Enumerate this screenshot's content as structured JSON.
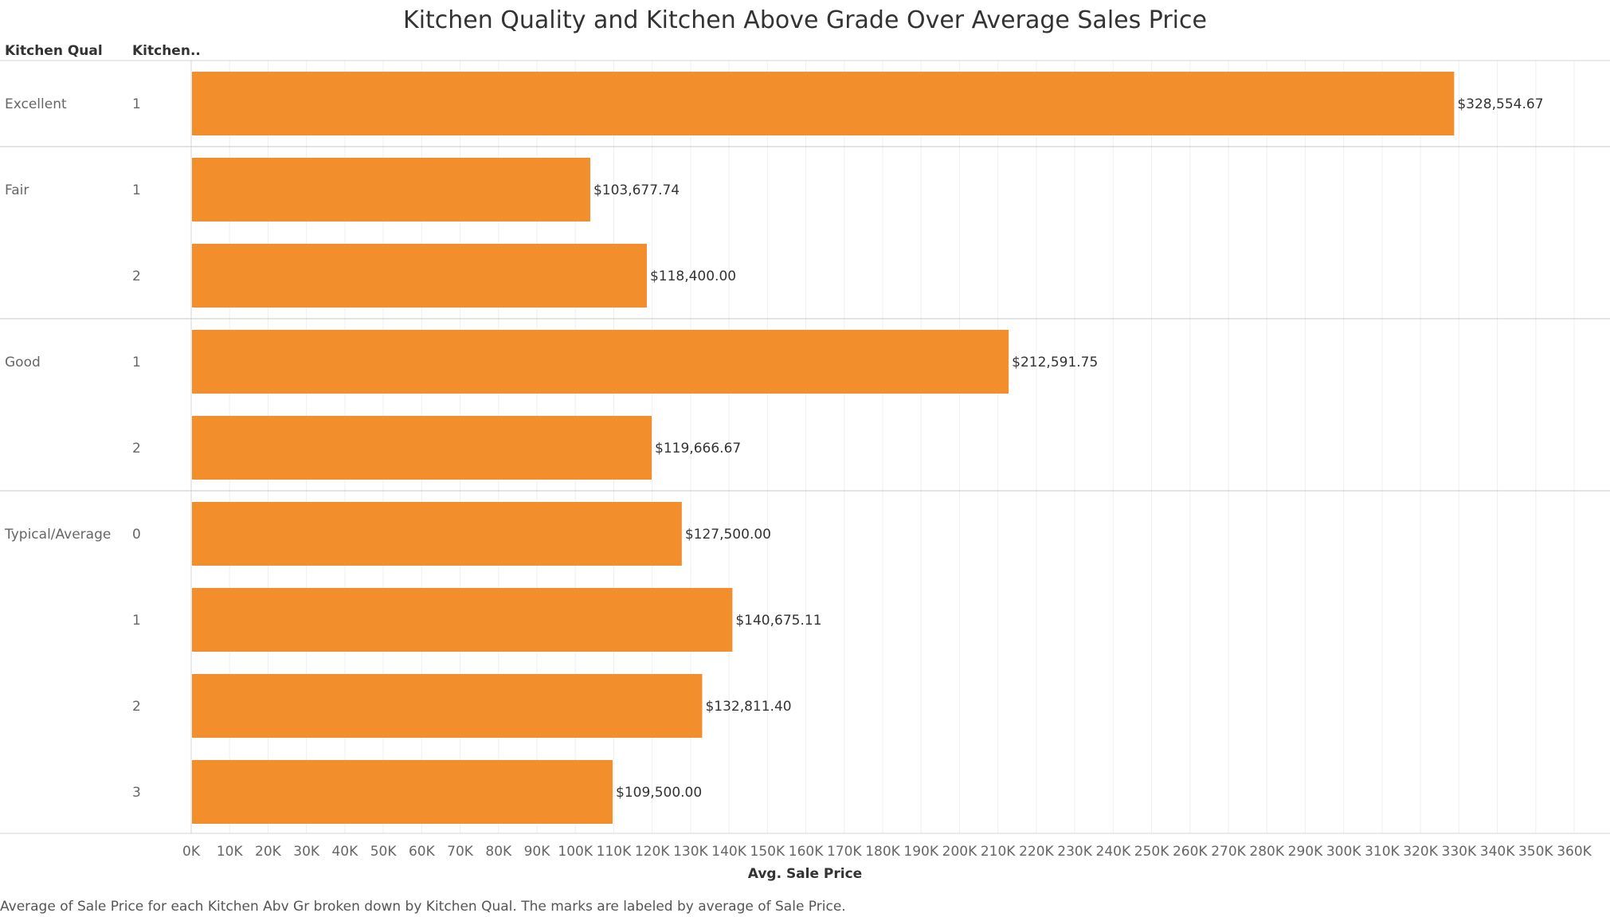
{
  "chart_data": {
    "type": "bar",
    "orientation": "horizontal",
    "title": "Kitchen Quality and Kitchen Above Grade Over Average Sales Price",
    "row_headers": [
      "Kitchen Qual",
      "Kitchen.."
    ],
    "xlabel": "Avg. Sale Price",
    "xlim": [
      0,
      360000
    ],
    "xtick_step": 10000,
    "xtick_labels": [
      "0K",
      "10K",
      "20K",
      "30K",
      "40K",
      "50K",
      "60K",
      "70K",
      "80K",
      "90K",
      "100K",
      "110K",
      "120K",
      "130K",
      "140K",
      "150K",
      "160K",
      "170K",
      "180K",
      "190K",
      "200K",
      "210K",
      "220K",
      "230K",
      "240K",
      "250K",
      "260K",
      "270K",
      "280K",
      "290K",
      "300K",
      "310K",
      "320K",
      "330K",
      "340K",
      "350K",
      "360K"
    ],
    "groups": [
      {
        "name": "Excellent",
        "rows": [
          {
            "kitchen": "1",
            "value": 328554.67,
            "label": "$328,554.67"
          }
        ]
      },
      {
        "name": "Fair",
        "rows": [
          {
            "kitchen": "1",
            "value": 103677.74,
            "label": "$103,677.74"
          },
          {
            "kitchen": "2",
            "value": 118400.0,
            "label": "$118,400.00"
          }
        ]
      },
      {
        "name": "Good",
        "rows": [
          {
            "kitchen": "1",
            "value": 212591.75,
            "label": "$212,591.75"
          },
          {
            "kitchen": "2",
            "value": 119666.67,
            "label": "$119,666.67"
          }
        ]
      },
      {
        "name": "Typical/Average",
        "rows": [
          {
            "kitchen": "0",
            "value": 127500.0,
            "label": "$127,500.00"
          },
          {
            "kitchen": "1",
            "value": 140675.11,
            "label": "$140,675.11"
          },
          {
            "kitchen": "2",
            "value": 132811.4,
            "label": "$132,811.40"
          },
          {
            "kitchen": "3",
            "value": 109500.0,
            "label": "$109,500.00"
          }
        ]
      }
    ],
    "bar_color": "#F28E2B",
    "grid": true,
    "caption": "Average of Sale Price for each Kitchen Abv Gr broken down by Kitchen Qual.  The marks are labeled by average of Sale Price."
  }
}
